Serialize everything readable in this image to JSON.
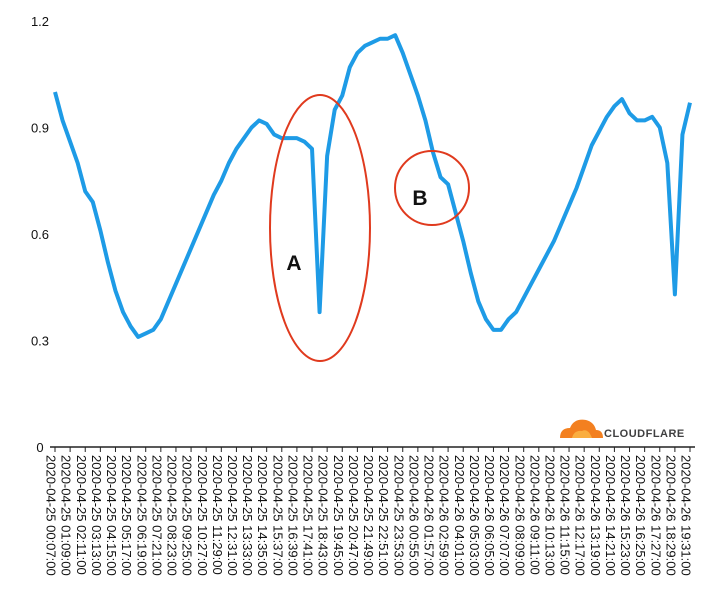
{
  "chart_data": {
    "type": "line",
    "categories": [
      "2020-04-25 00:07:00",
      null,
      "2020-04-25 01:09:00",
      null,
      "2020-04-25 02:11:00",
      null,
      "2020-04-25 03:13:00",
      null,
      "2020-04-25 04:15:00",
      null,
      "2020-04-25 05:17:00",
      null,
      "2020-04-25 06:19:00",
      null,
      "2020-04-25 07:21:00",
      null,
      "2020-04-25 08:23:00",
      null,
      "2020-04-25 09:25:00",
      null,
      "2020-04-25 10:27:00",
      null,
      "2020-04-25 11:29:00",
      null,
      "2020-04-25 12:31:00",
      null,
      "2020-04-25 13:33:00",
      null,
      "2020-04-25 14:35:00",
      null,
      "2020-04-25 15:37:00",
      null,
      "2020-04-25 16:39:00",
      null,
      "2020-04-25 17:41:00",
      null,
      "2020-04-25 18:43:00",
      null,
      "2020-04-25 19:45:00",
      null,
      "2020-04-25 20:47:00",
      null,
      "2020-04-25 21:49:00",
      null,
      "2020-04-25 22:51:00",
      null,
      "2020-04-25 23:53:00",
      null,
      "2020-04-26 00:55:00",
      null,
      "2020-04-26 01:57:00",
      null,
      "2020-04-26 02:59:00",
      null,
      "2020-04-26 04:01:00",
      null,
      "2020-04-26 05:03:00",
      null,
      "2020-04-26 06:05:00",
      null,
      "2020-04-26 07:07:00",
      null,
      "2020-04-26 08:09:00",
      null,
      "2020-04-26 09:11:00",
      null,
      "2020-04-26 10:13:00",
      null,
      "2020-04-26 11:15:00",
      null,
      "2020-04-26 12:17:00",
      null,
      "2020-04-26 13:19:00",
      null,
      "2020-04-26 14:21:00",
      null,
      "2020-04-26 15:23:00",
      null,
      "2020-04-26 16:25:00",
      null,
      "2020-04-26 17:27:00",
      null,
      "2020-04-26 18:29:00",
      null,
      "2020-04-26 19:31:00"
    ],
    "values": [
      1.0,
      0.92,
      0.86,
      0.8,
      0.72,
      0.69,
      0.61,
      0.52,
      0.44,
      0.38,
      0.34,
      0.31,
      0.32,
      0.33,
      0.36,
      0.41,
      0.46,
      0.51,
      0.56,
      0.61,
      0.66,
      0.71,
      0.75,
      0.8,
      0.84,
      0.87,
      0.9,
      0.92,
      0.91,
      0.88,
      0.87,
      0.87,
      0.87,
      0.86,
      0.84,
      0.38,
      0.82,
      0.95,
      0.99,
      1.07,
      1.11,
      1.13,
      1.14,
      1.15,
      1.15,
      1.16,
      1.11,
      1.05,
      0.99,
      0.92,
      0.83,
      0.76,
      0.74,
      0.66,
      0.58,
      0.49,
      0.41,
      0.36,
      0.33,
      0.33,
      0.36,
      0.38,
      0.42,
      0.46,
      0.5,
      0.54,
      0.58,
      0.63,
      0.68,
      0.73,
      0.79,
      0.85,
      0.89,
      0.93,
      0.96,
      0.98,
      0.94,
      0.92,
      0.92,
      0.93,
      0.9,
      0.8,
      0.43,
      0.88,
      0.97
    ],
    "color": "#1e9be6",
    "ylim": [
      0,
      1.2
    ],
    "yticks": [
      0,
      0.3,
      0.6,
      0.9,
      1.2
    ],
    "annotations": [
      "A",
      "B"
    ],
    "logo": "CLOUDFLARE"
  }
}
